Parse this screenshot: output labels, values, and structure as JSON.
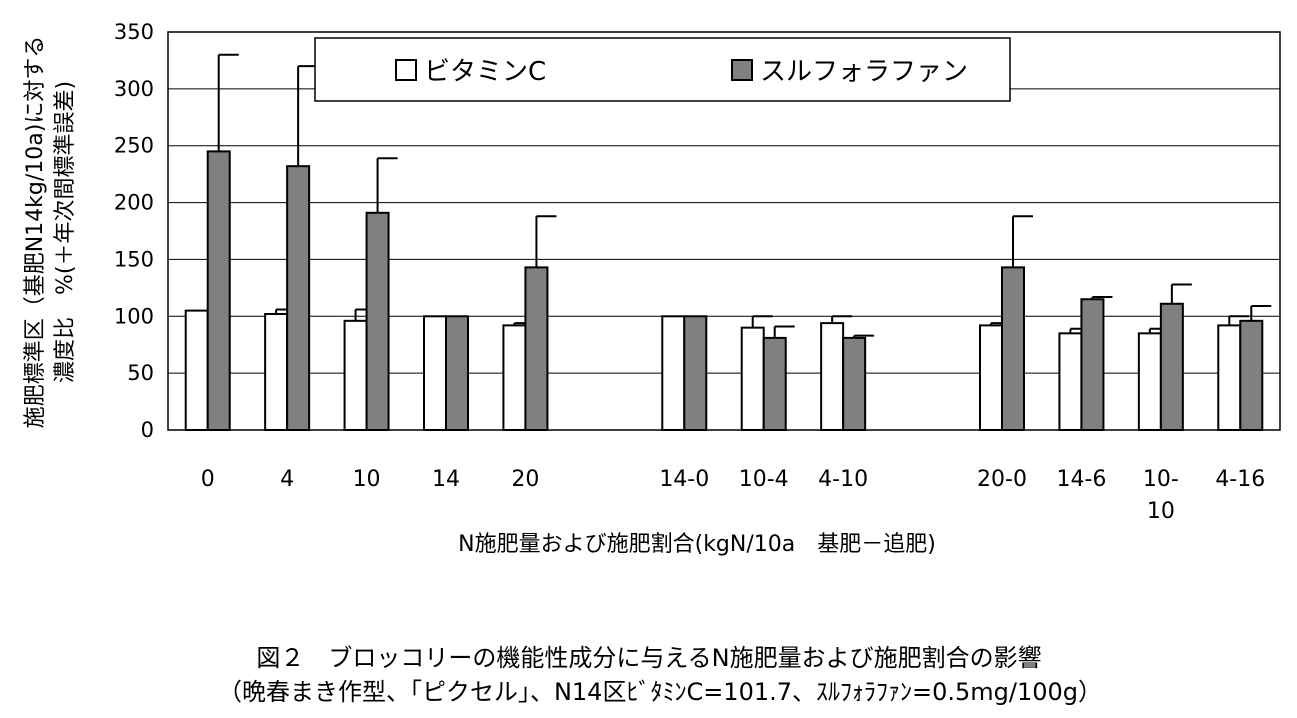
{
  "chart_data": {
    "type": "bar",
    "xlabel": "N施肥量および施肥割合(kgN/10a　基肥－追肥)",
    "ylabel_line1": "施肥標準区（基肥N14kg/10a)に対する",
    "ylabel_line2": "濃度比　%(＋年次間標準誤差)",
    "ylim": [
      0,
      350
    ],
    "yticks": [
      0,
      50,
      100,
      150,
      200,
      250,
      300,
      350
    ],
    "grid": true,
    "legend_position": "top",
    "categories": [
      "0",
      "4",
      "10",
      "14",
      "20",
      "",
      "14-0",
      "10-4",
      "4-10",
      "",
      "20-0",
      "14-6",
      "10-10",
      "4-16"
    ],
    "category_label_lines": [
      [
        "0"
      ],
      [
        "4"
      ],
      [
        "10"
      ],
      [
        "14"
      ],
      [
        "20"
      ],
      [],
      [
        "14-0"
      ],
      [
        "10-4"
      ],
      [
        "4-10"
      ],
      [],
      [
        "20-0"
      ],
      [
        "14-6"
      ],
      [
        "10-",
        "10"
      ],
      [
        "4-16"
      ]
    ],
    "series": [
      {
        "name": "ビタミンC",
        "color": "#ffffff",
        "values": [
          105,
          102,
          96,
          100,
          92,
          null,
          100,
          90,
          94,
          null,
          92,
          85,
          85,
          92
        ],
        "errors": [
          0,
          4,
          10,
          0,
          2,
          null,
          0,
          10,
          6,
          null,
          2,
          4,
          4,
          8
        ]
      },
      {
        "name": "スルフォラファン",
        "color": "#808080",
        "values": [
          245,
          232,
          191,
          100,
          143,
          null,
          100,
          81,
          81,
          null,
          143,
          115,
          111,
          96
        ],
        "errors": [
          85,
          88,
          48,
          0,
          45,
          null,
          0,
          10,
          2,
          null,
          45,
          2,
          17,
          13
        ]
      }
    ]
  },
  "caption": {
    "line1": "図２　ブロッコリーの機能性成分に与えるN施肥量および施肥割合の影響",
    "line2": "（晩春まき作型、「ピクセル」、N14区ﾋﾞﾀﾐﾝC=101.7、ｽﾙﾌｫﾗﾌｧﾝ=0.5mg/100g）"
  }
}
